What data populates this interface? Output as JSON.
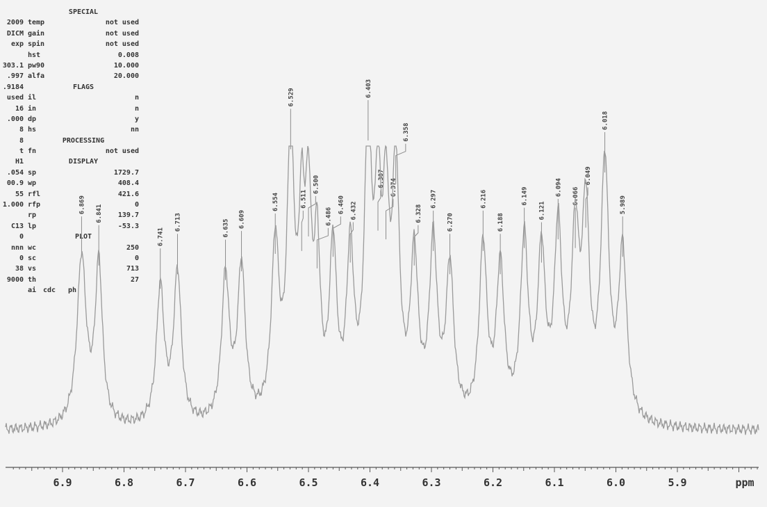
{
  "colors": {
    "paper": "#f3f3f3",
    "trace": "#9a9a9a",
    "label": "#444444",
    "axis": "#555555"
  },
  "params": {
    "special_header": "SPECIAL",
    "flags_header": "FLAGS",
    "processing_header": "PROCESSING",
    "display_header": "DISPLAY",
    "plot_header": "PLOT",
    "left_column": [
      "2009",
      "DICM",
      "exp",
      "",
      "303.1",
      ".997",
      ".9184",
      "used",
      "16",
      ".000",
      "8",
      "8",
      "t",
      "H1",
      ".054",
      "00.9",
      "55",
      "1.000",
      "",
      "C13",
      "0",
      "nnn",
      "0",
      "38",
      "9000"
    ],
    "rows": [
      {
        "n": "temp",
        "v": "not used"
      },
      {
        "n": "gain",
        "v": "not used"
      },
      {
        "n": "spin",
        "v": "not used"
      },
      {
        "n": "hst",
        "v": "0.008"
      },
      {
        "n": "pw90",
        "v": "10.000"
      },
      {
        "n": "alfa",
        "v": "20.000"
      },
      {
        "n": "il",
        "v": "n"
      },
      {
        "n": "in",
        "v": "n"
      },
      {
        "n": "dp",
        "v": "y"
      },
      {
        "n": "hs",
        "v": "nn"
      },
      {
        "n": "fn",
        "v": "not used"
      },
      {
        "n": "sp",
        "v": "1729.7"
      },
      {
        "n": "wp",
        "v": "408.4"
      },
      {
        "n": "rfl",
        "v": "421.6"
      },
      {
        "n": "rfp",
        "v": "0"
      },
      {
        "n": "rp",
        "v": "139.7"
      },
      {
        "n": "lp",
        "v": "-53.3"
      },
      {
        "n": "wc",
        "v": "250"
      },
      {
        "n": "sc",
        "v": "0"
      },
      {
        "n": "vs",
        "v": "713"
      },
      {
        "n": "th",
        "v": "27"
      }
    ],
    "plot_row": {
      "a": "ai",
      "b": "cdc",
      "d": "ph"
    }
  },
  "chart_data": {
    "type": "line",
    "title": "",
    "xlabel": "ppm",
    "ylabel": "",
    "xlim": [
      6.98,
      5.76
    ],
    "x_reversed": true,
    "grid": false,
    "x_ticks": [
      6.9,
      6.8,
      6.7,
      6.6,
      6.5,
      6.4,
      6.3,
      6.2,
      6.1,
      6.0,
      5.9
    ],
    "x_tick_labels": [
      "6.9",
      "6.8",
      "6.7",
      "6.6",
      "6.5",
      "6.4",
      "6.3",
      "6.2",
      "6.1",
      "6.0",
      "5.9"
    ],
    "baseline": 0.02,
    "peaks": [
      {
        "ppm": 6.869,
        "label": "6.869",
        "h": 0.58,
        "w": 0.009
      },
      {
        "ppm": 6.841,
        "label": "6.841",
        "h": 0.55,
        "w": 0.007
      },
      {
        "ppm": 6.741,
        "label": "6.741",
        "h": 0.47,
        "w": 0.0075
      },
      {
        "ppm": 6.713,
        "label": "6.713",
        "h": 0.52,
        "w": 0.0075
      },
      {
        "ppm": 6.635,
        "label": "6.635",
        "h": 0.5,
        "w": 0.0075
      },
      {
        "ppm": 6.609,
        "label": "6.609",
        "h": 0.53,
        "w": 0.0075
      },
      {
        "ppm": 6.554,
        "label": "6.554",
        "h": 0.59,
        "w": 0.0075
      },
      {
        "ppm": 6.529,
        "label": "6.529",
        "h": 0.95,
        "w": 0.007
      },
      {
        "ppm": 6.511,
        "label": "6.511",
        "h": 0.6,
        "w": 0.006
      },
      {
        "ppm": 6.5,
        "label": "6.500",
        "h": 0.65,
        "w": 0.006
      },
      {
        "ppm": 6.486,
        "label": "6.486",
        "h": 0.54,
        "w": 0.006
      },
      {
        "ppm": 6.46,
        "label": "6.460",
        "h": 0.58,
        "w": 0.007
      },
      {
        "ppm": 6.432,
        "label": "6.432",
        "h": 0.56,
        "w": 0.007
      },
      {
        "ppm": 6.403,
        "label": "6.403",
        "h": 1.0,
        "w": 0.007
      },
      {
        "ppm": 6.387,
        "label": "6.387",
        "h": 0.67,
        "w": 0.006
      },
      {
        "ppm": 6.374,
        "label": "6.374",
        "h": 0.64,
        "w": 0.006
      },
      {
        "ppm": 6.358,
        "label": "6.358",
        "h": 0.83,
        "w": 0.007
      },
      {
        "ppm": 6.328,
        "label": "6.328",
        "h": 0.55,
        "w": 0.0075
      },
      {
        "ppm": 6.297,
        "label": "6.297",
        "h": 0.6,
        "w": 0.0075
      },
      {
        "ppm": 6.27,
        "label": "6.270",
        "h": 0.52,
        "w": 0.0075
      },
      {
        "ppm": 6.216,
        "label": "6.216",
        "h": 0.6,
        "w": 0.0075
      },
      {
        "ppm": 6.188,
        "label": "6.188",
        "h": 0.52,
        "w": 0.0075
      },
      {
        "ppm": 6.149,
        "label": "6.149",
        "h": 0.61,
        "w": 0.0075
      },
      {
        "ppm": 6.121,
        "label": "6.121",
        "h": 0.56,
        "w": 0.0075
      },
      {
        "ppm": 6.094,
        "label": "6.094",
        "h": 0.64,
        "w": 0.0075
      },
      {
        "ppm": 6.066,
        "label": "6.066",
        "h": 0.61,
        "w": 0.0075
      },
      {
        "ppm": 6.049,
        "label": "6.049",
        "h": 0.68,
        "w": 0.007
      },
      {
        "ppm": 6.018,
        "label": "6.018",
        "h": 0.87,
        "w": 0.008
      },
      {
        "ppm": 5.989,
        "label": "5.989",
        "h": 0.58,
        "w": 0.008
      }
    ]
  }
}
